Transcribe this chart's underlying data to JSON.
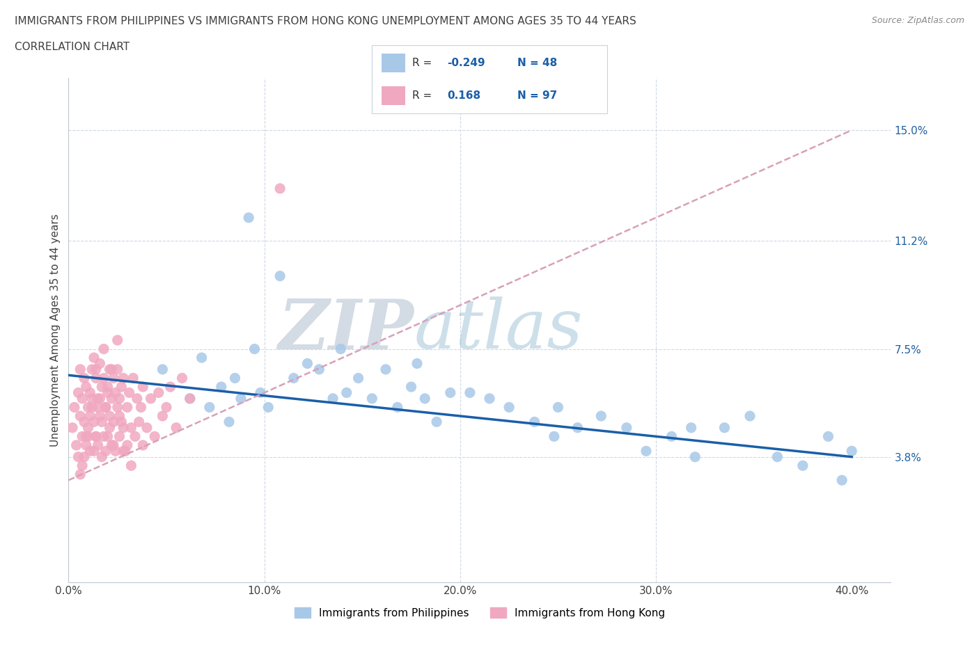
{
  "title_line1": "IMMIGRANTS FROM PHILIPPINES VS IMMIGRANTS FROM HONG KONG UNEMPLOYMENT AMONG AGES 35 TO 44 YEARS",
  "title_line2": "CORRELATION CHART",
  "source_text": "Source: ZipAtlas.com",
  "ylabel": "Unemployment Among Ages 35 to 44 years",
  "xlim": [
    0.0,
    0.42
  ],
  "ylim": [
    -0.005,
    0.168
  ],
  "xticks": [
    0.0,
    0.1,
    0.2,
    0.3,
    0.4
  ],
  "xticklabels": [
    "0.0%",
    "10.0%",
    "20.0%",
    "30.0%",
    "40.0%"
  ],
  "ytick_positions": [
    0.038,
    0.075,
    0.112,
    0.15
  ],
  "ytick_labels": [
    "3.8%",
    "7.5%",
    "11.2%",
    "15.0%"
  ],
  "philippines_color": "#a8c8e8",
  "hongkong_color": "#f0a8c0",
  "philippines_line_color": "#1a5fa8",
  "hongkong_line_color": "#d8a0b8",
  "R_philippines": -0.249,
  "N_philippines": 48,
  "R_hongkong": 0.168,
  "N_hongkong": 97,
  "watermark_zip": "ZIP",
  "watermark_atlas": "atlas",
  "watermark_color_zip": "#c0ccd8",
  "watermark_color_atlas": "#b0c8d8",
  "grid_color": "#d0d8e4",
  "background_color": "#ffffff",
  "title_color": "#404040",
  "tick_label_color": "#2060a0",
  "legend_color_philippines": "#a8c8e8",
  "legend_color_hongkong": "#f0a8c0",
  "legend_text_color": "#1a5fa8",
  "philippines_x": [
    0.048,
    0.062,
    0.068,
    0.072,
    0.078,
    0.082,
    0.085,
    0.088,
    0.092,
    0.095,
    0.098,
    0.102,
    0.108,
    0.115,
    0.122,
    0.128,
    0.135,
    0.142,
    0.148,
    0.155,
    0.162,
    0.168,
    0.175,
    0.182,
    0.188,
    0.195,
    0.205,
    0.215,
    0.225,
    0.238,
    0.248,
    0.26,
    0.272,
    0.285,
    0.295,
    0.308,
    0.32,
    0.335,
    0.348,
    0.362,
    0.375,
    0.388,
    0.395,
    0.4,
    0.318,
    0.25,
    0.178,
    0.139
  ],
  "philippines_y": [
    0.068,
    0.058,
    0.072,
    0.055,
    0.062,
    0.05,
    0.065,
    0.058,
    0.12,
    0.075,
    0.06,
    0.055,
    0.1,
    0.065,
    0.07,
    0.068,
    0.058,
    0.06,
    0.065,
    0.058,
    0.068,
    0.055,
    0.062,
    0.058,
    0.05,
    0.06,
    0.06,
    0.058,
    0.055,
    0.05,
    0.045,
    0.048,
    0.052,
    0.048,
    0.04,
    0.045,
    0.038,
    0.048,
    0.052,
    0.038,
    0.035,
    0.045,
    0.03,
    0.04,
    0.048,
    0.055,
    0.07,
    0.075
  ],
  "hongkong_x": [
    0.002,
    0.003,
    0.004,
    0.005,
    0.005,
    0.006,
    0.006,
    0.007,
    0.007,
    0.008,
    0.008,
    0.009,
    0.009,
    0.01,
    0.01,
    0.011,
    0.011,
    0.012,
    0.012,
    0.013,
    0.013,
    0.014,
    0.014,
    0.015,
    0.015,
    0.016,
    0.016,
    0.017,
    0.017,
    0.018,
    0.018,
    0.019,
    0.019,
    0.02,
    0.02,
    0.021,
    0.021,
    0.022,
    0.022,
    0.023,
    0.023,
    0.024,
    0.024,
    0.025,
    0.025,
    0.026,
    0.026,
    0.027,
    0.027,
    0.028,
    0.028,
    0.029,
    0.03,
    0.031,
    0.032,
    0.033,
    0.034,
    0.035,
    0.036,
    0.037,
    0.038,
    0.04,
    0.042,
    0.044,
    0.046,
    0.048,
    0.05,
    0.052,
    0.055,
    0.058,
    0.062,
    0.025,
    0.018,
    0.02,
    0.015,
    0.01,
    0.012,
    0.014,
    0.016,
    0.008,
    0.03,
    0.022,
    0.007,
    0.009,
    0.011,
    0.013,
    0.006,
    0.019,
    0.021,
    0.023,
    0.017,
    0.014,
    0.026,
    0.028,
    0.032,
    0.038,
    0.108
  ],
  "hongkong_y": [
    0.048,
    0.055,
    0.042,
    0.06,
    0.038,
    0.052,
    0.068,
    0.045,
    0.058,
    0.05,
    0.065,
    0.042,
    0.062,
    0.055,
    0.045,
    0.06,
    0.04,
    0.058,
    0.068,
    0.05,
    0.072,
    0.045,
    0.065,
    0.055,
    0.042,
    0.058,
    0.07,
    0.05,
    0.062,
    0.045,
    0.065,
    0.055,
    0.04,
    0.06,
    0.045,
    0.068,
    0.052,
    0.058,
    0.042,
    0.065,
    0.05,
    0.06,
    0.04,
    0.055,
    0.068,
    0.045,
    0.058,
    0.05,
    0.062,
    0.048,
    0.065,
    0.04,
    0.055,
    0.06,
    0.048,
    0.065,
    0.045,
    0.058,
    0.05,
    0.055,
    0.062,
    0.048,
    0.058,
    0.045,
    0.06,
    0.052,
    0.055,
    0.062,
    0.048,
    0.065,
    0.058,
    0.078,
    0.075,
    0.062,
    0.058,
    0.048,
    0.055,
    0.068,
    0.052,
    0.038,
    0.042,
    0.068,
    0.035,
    0.045,
    0.052,
    0.04,
    0.032,
    0.055,
    0.048,
    0.042,
    0.038,
    0.045,
    0.052,
    0.04,
    0.035,
    0.042,
    0.13
  ]
}
